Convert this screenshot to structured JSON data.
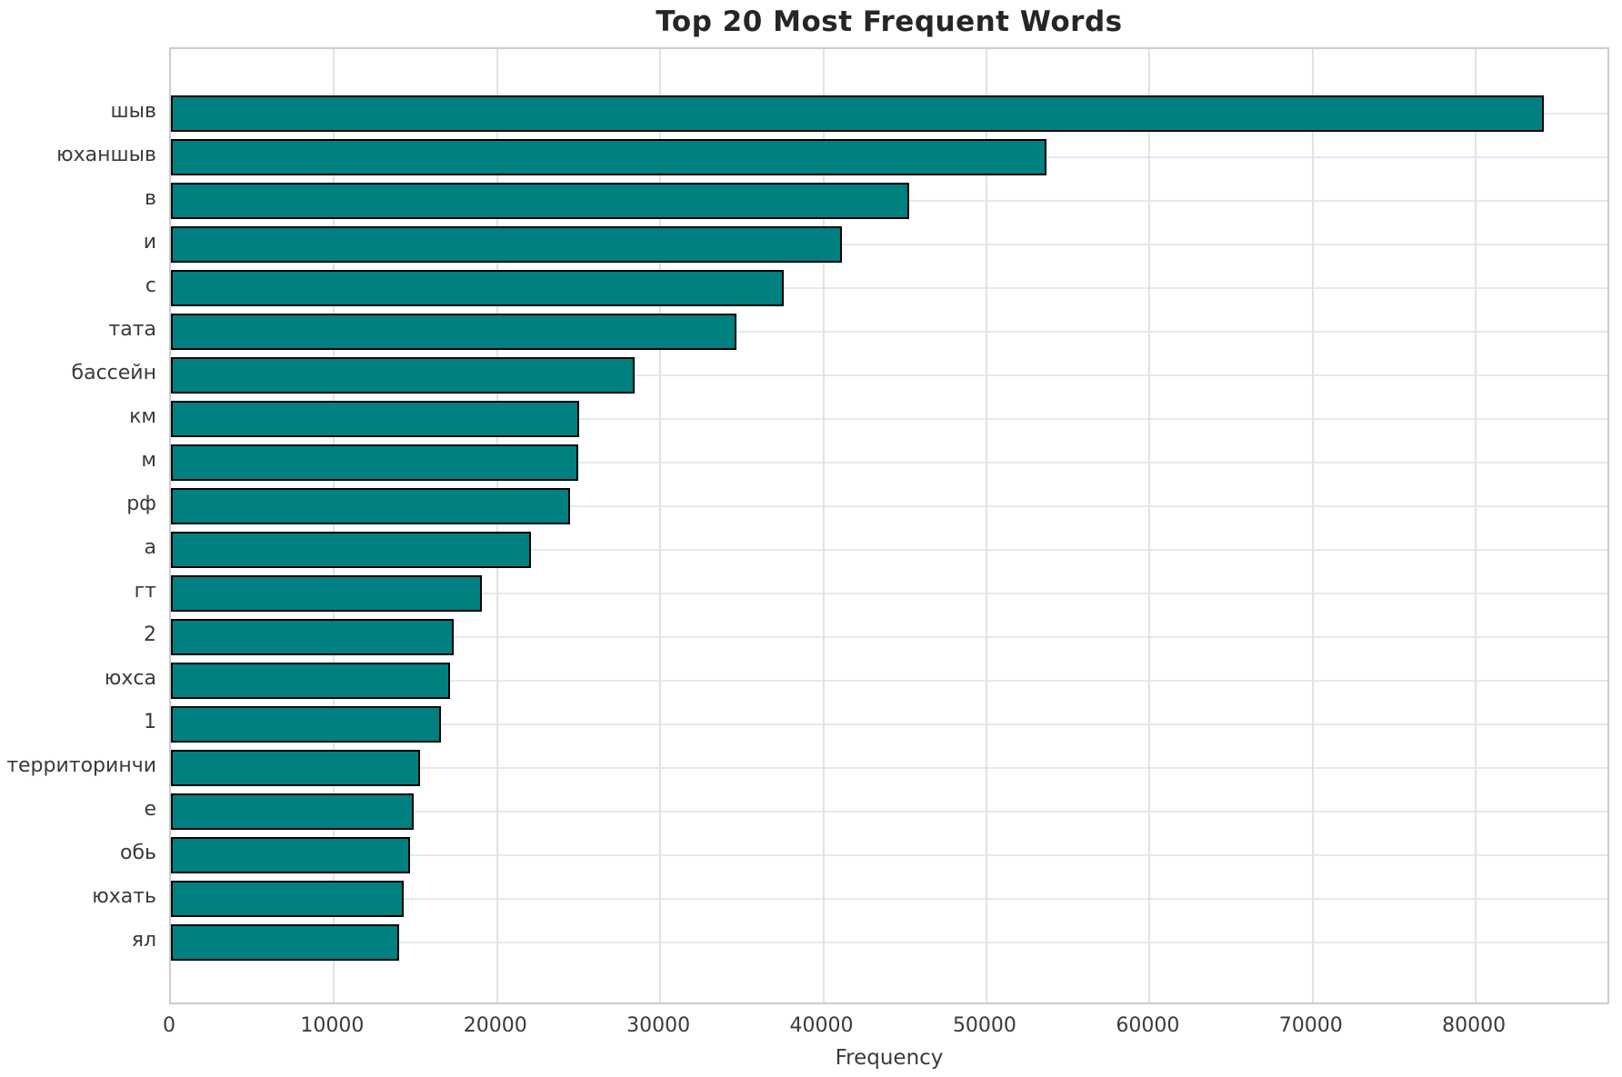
{
  "figure": {
    "title": "Top 20 Most Frequent Words",
    "xlabel": "Frequency"
  },
  "chart_data": {
    "type": "bar",
    "orientation": "horizontal",
    "title": "Top 20 Most Frequent Words",
    "xlabel": "Frequency",
    "ylabel": "",
    "categories": [
      "шыв",
      "юханшыв",
      "в",
      "и",
      "с",
      "тата",
      "бассейн",
      "км",
      "м",
      "рф",
      "а",
      "гт",
      "2",
      "юхса",
      "1",
      "территоринчи",
      "е",
      "обь",
      "юхать",
      "ял"
    ],
    "values": [
      84200,
      53700,
      45250,
      41150,
      37550,
      34650,
      28450,
      25050,
      24950,
      24450,
      22050,
      19050,
      17350,
      17100,
      16550,
      15250,
      14900,
      14650,
      14250,
      13980
    ],
    "xlim": [
      0,
      88300
    ],
    "xticks": [
      0,
      10000,
      20000,
      30000,
      40000,
      50000,
      60000,
      70000,
      80000
    ],
    "grid": true,
    "legend": false,
    "bar_color": "#008080",
    "bar_edge_color": "#000000"
  }
}
